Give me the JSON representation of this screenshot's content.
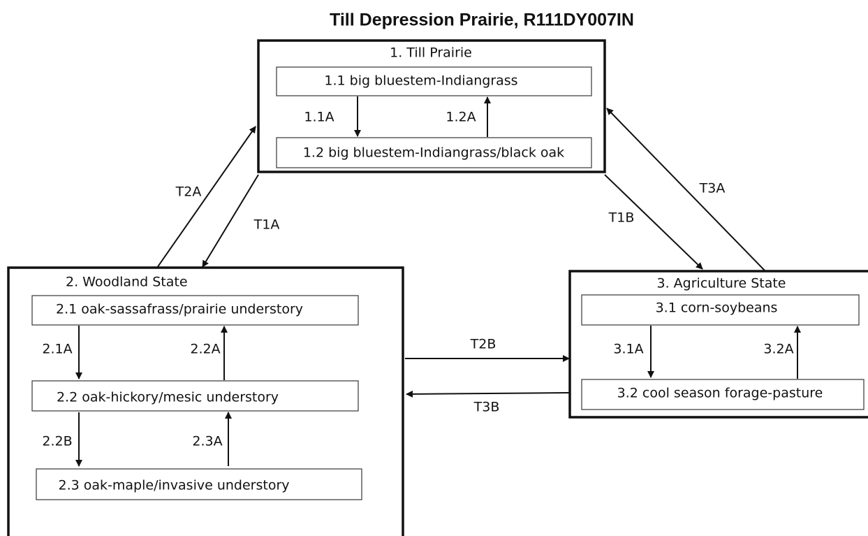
{
  "title": "Till Depression Prairie, R111DY007IN",
  "states": [
    {
      "label": "1. Till Prairie",
      "communities": [
        "1.1 big bluestem-Indiangrass",
        "1.2 big bluestem-Indiangrass/black oak"
      ],
      "pathways": [
        "1.1A",
        "1.2A"
      ]
    },
    {
      "label": "2. Woodland State",
      "communities": [
        "2.1 oak-sassafrass/prairie understory",
        "2.2 oak-hickory/mesic understory",
        "2.3 oak-maple/invasive understory"
      ],
      "pathways": [
        "2.1A",
        "2.2A",
        "2.2B",
        "2.3A"
      ]
    },
    {
      "label": "3. Agriculture State",
      "communities": [
        "3.1 corn-soybeans",
        "3.2 cool season forage-pasture"
      ],
      "pathways": [
        "3.1A",
        "3.2A"
      ]
    }
  ],
  "transitions": [
    "T2A",
    "T1A",
    "T1B",
    "T3A",
    "T2B",
    "T3B"
  ]
}
